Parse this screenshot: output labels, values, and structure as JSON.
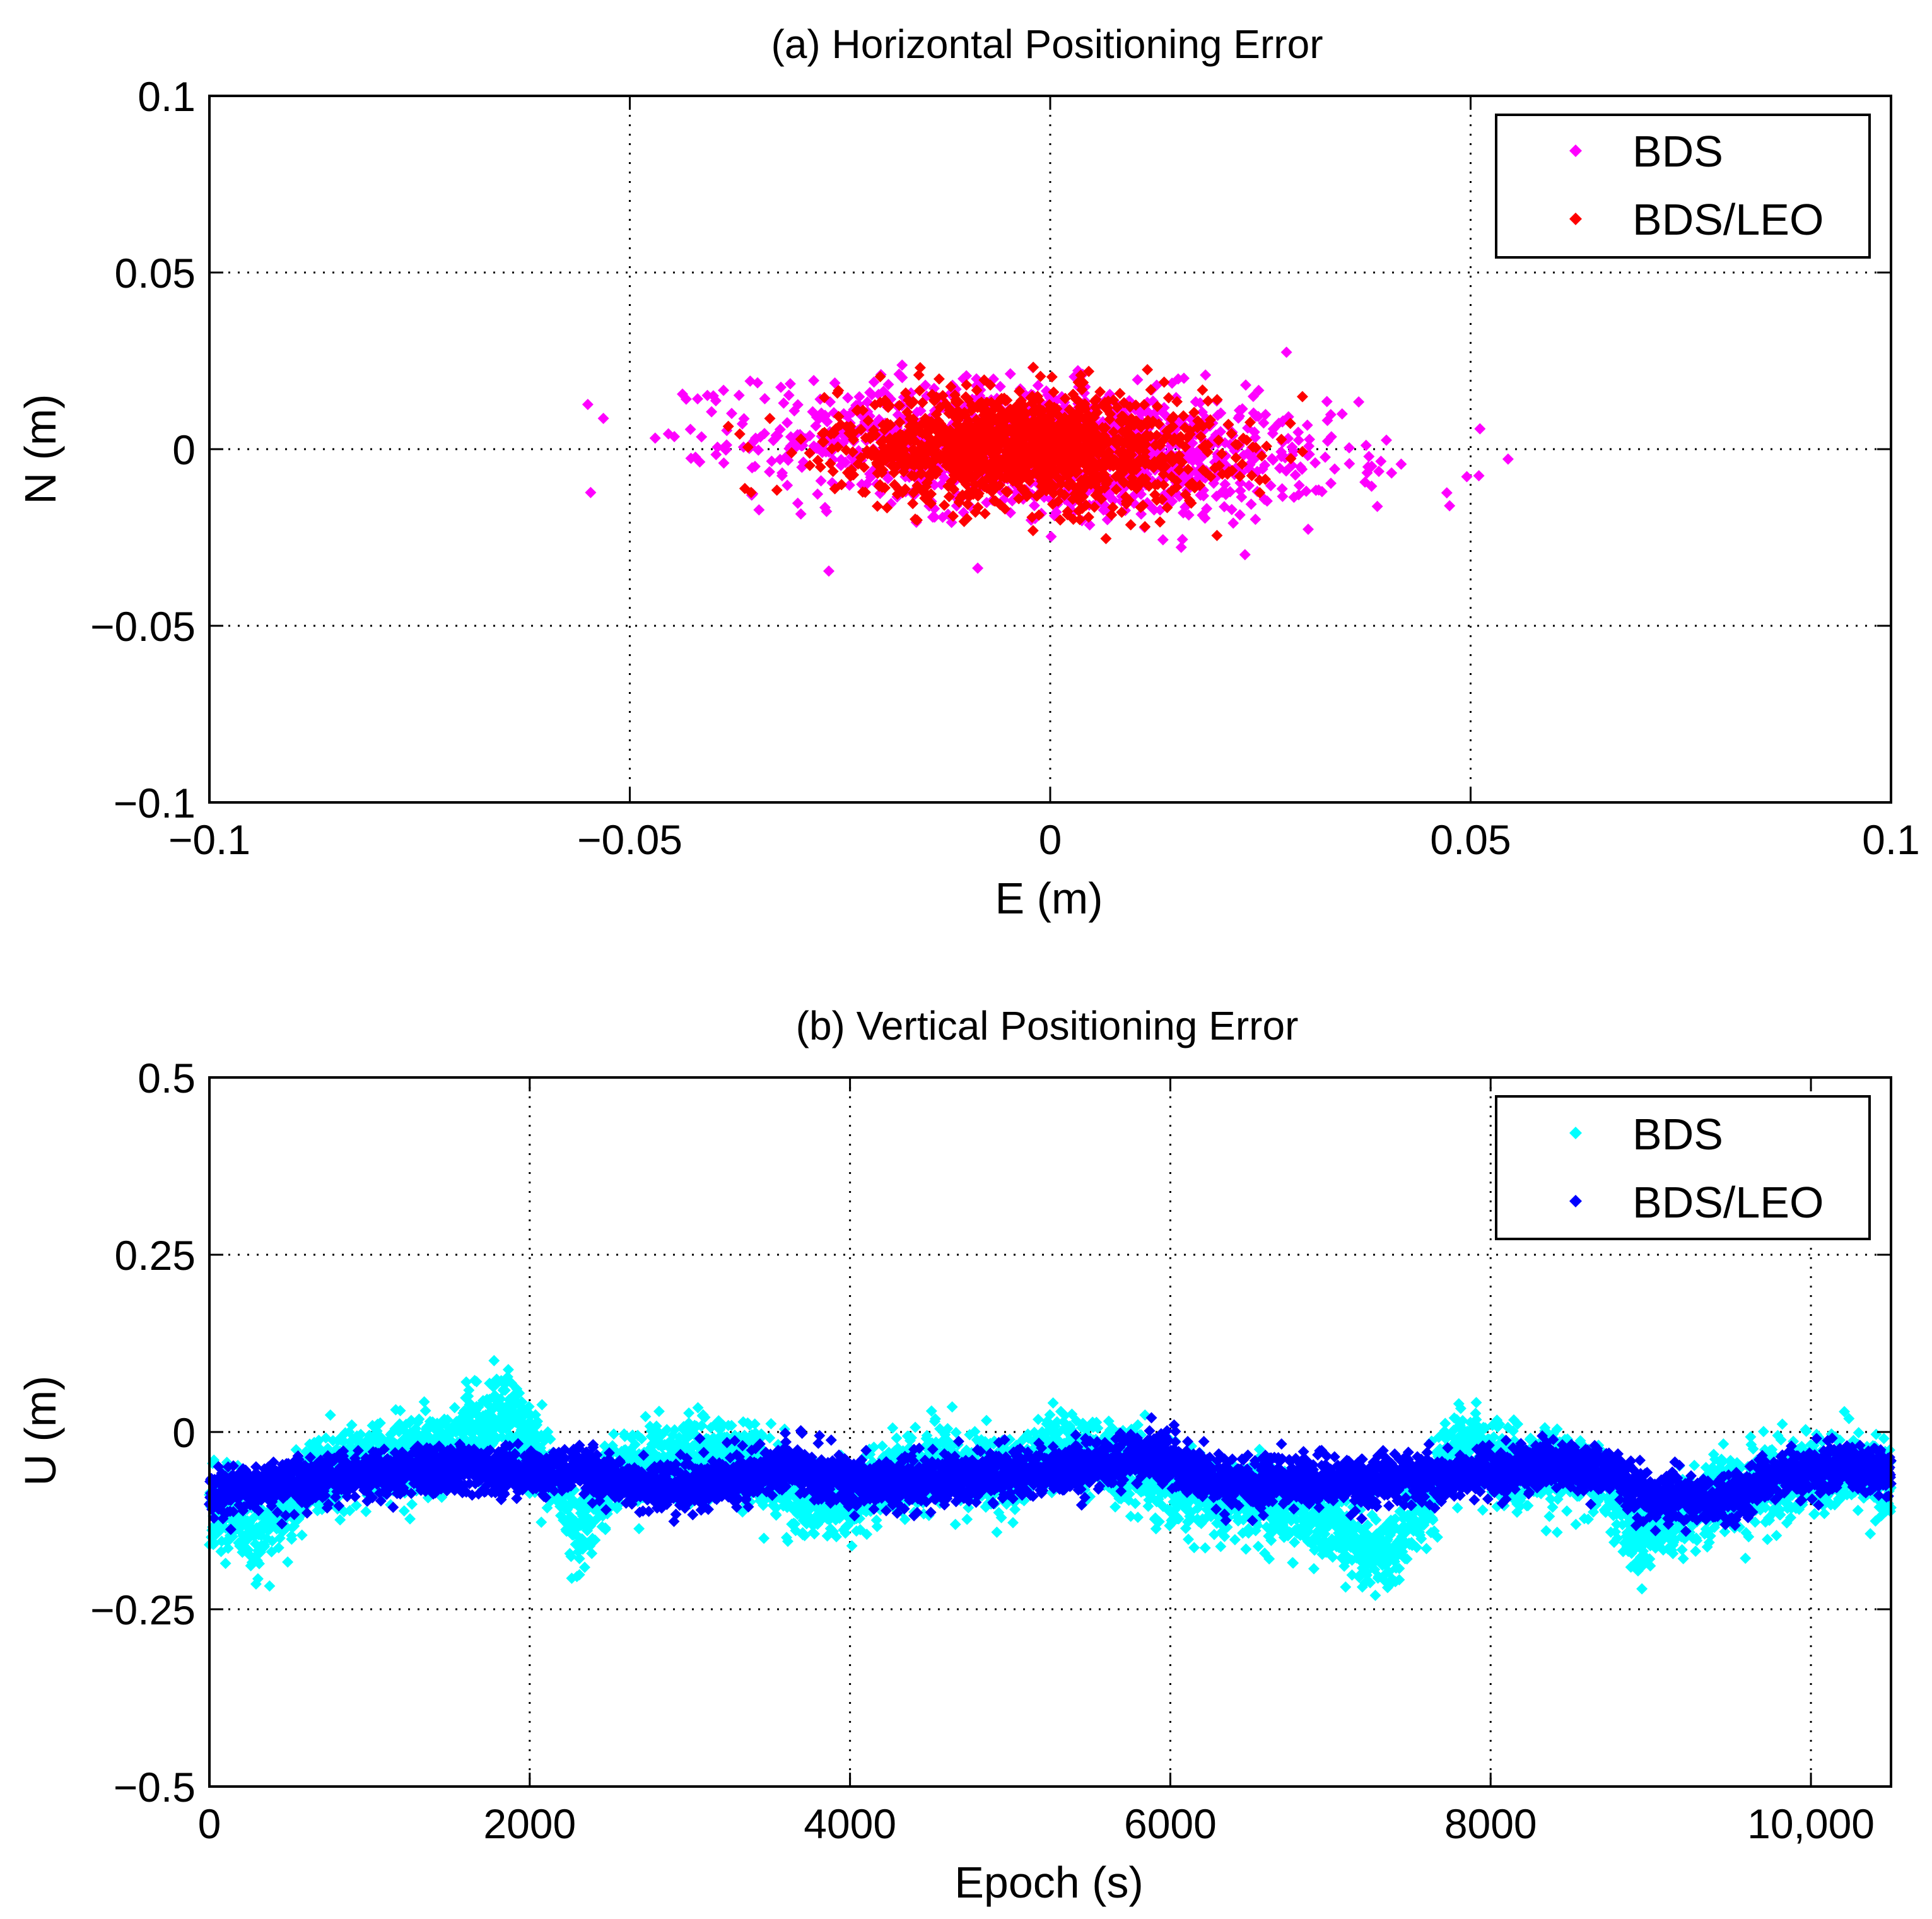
{
  "chart_data": [
    {
      "id": "a",
      "type": "scatter",
      "title": "(a) Horizontal Positioning Error",
      "xlabel": "E (m)",
      "ylabel": "N (m)",
      "xlim": [
        -0.1,
        0.1
      ],
      "ylim": [
        -0.1,
        0.1
      ],
      "xticks": [
        -0.1,
        -0.05,
        0,
        0.05,
        0.1
      ],
      "xtick_labels": [
        "−0.1",
        "−0.05",
        "0",
        "0.05",
        "0.1"
      ],
      "yticks": [
        -0.1,
        -0.05,
        0,
        0.05,
        0.1
      ],
      "ytick_labels": [
        "−0.1",
        "−0.05",
        "0",
        "0.05",
        "0.1"
      ],
      "grid": true,
      "legend_position": "top-right",
      "series": [
        {
          "name": "BDS",
          "color": "#ff00ff",
          "points": 1400,
          "e_mean": 0.0,
          "e_std": 0.017,
          "e_range": [
            -0.055,
            0.055
          ],
          "n_mean": 0.0,
          "n_std": 0.009,
          "n_range": [
            -0.038,
            0.031
          ],
          "tilt": -0.35
        },
        {
          "name": "BDS/LEO",
          "color": "#ff0000",
          "points": 1400,
          "e_mean": -0.003,
          "e_std": 0.011,
          "e_range": [
            -0.047,
            0.03
          ],
          "n_mean": 0.0,
          "n_std": 0.008,
          "n_range": [
            -0.032,
            0.027
          ],
          "tilt": -0.2
        }
      ]
    },
    {
      "id": "b",
      "type": "scatter",
      "title": "(b) Vertical Positioning Error",
      "xlabel": "Epoch (s)",
      "ylabel": "U (m)",
      "xlim": [
        0,
        10500
      ],
      "ylim": [
        -0.5,
        0.5
      ],
      "xticks": [
        0,
        2000,
        4000,
        6000,
        8000,
        10000
      ],
      "xtick_labels": [
        "0",
        "2000",
        "4000",
        "6000",
        "8000",
        "10,000"
      ],
      "yticks": [
        -0.5,
        -0.25,
        0,
        0.25,
        0.5
      ],
      "ytick_labels": [
        "−0.5",
        "−0.25",
        "0",
        "0.25",
        "0.5"
      ],
      "grid": true,
      "legend_position": "top-right",
      "series": [
        {
          "name": "BDS",
          "color": "#00ffff",
          "trend": [
            [
              0,
              -0.1
            ],
            [
              300,
              -0.14
            ],
            [
              700,
              -0.06
            ],
            [
              1000,
              -0.04
            ],
            [
              1500,
              -0.02
            ],
            [
              1850,
              0.03
            ],
            [
              2100,
              -0.04
            ],
            [
              2300,
              -0.14
            ],
            [
              2500,
              -0.06
            ],
            [
              3000,
              -0.03
            ],
            [
              3400,
              -0.04
            ],
            [
              3700,
              -0.1
            ],
            [
              4000,
              -0.09
            ],
            [
              4500,
              -0.05
            ],
            [
              5000,
              -0.06
            ],
            [
              5300,
              -0.02
            ],
            [
              5700,
              -0.04
            ],
            [
              6000,
              -0.08
            ],
            [
              6500,
              -0.09
            ],
            [
              7000,
              -0.13
            ],
            [
              7300,
              -0.18
            ],
            [
              7600,
              -0.1
            ],
            [
              7800,
              -0.02
            ],
            [
              8200,
              -0.05
            ],
            [
              8700,
              -0.06
            ],
            [
              8900,
              -0.15
            ],
            [
              9300,
              -0.1
            ],
            [
              9800,
              -0.07
            ],
            [
              10200,
              -0.05
            ],
            [
              10500,
              -0.07
            ]
          ],
          "spread": 0.045,
          "extremes": {
            "min": -0.25,
            "max": 0.13
          }
        },
        {
          "name": "BDS/LEO",
          "color": "#0000ff",
          "trend": [
            [
              0,
              -0.09
            ],
            [
              500,
              -0.07
            ],
            [
              1000,
              -0.06
            ],
            [
              1500,
              -0.05
            ],
            [
              1900,
              -0.06
            ],
            [
              2300,
              -0.05
            ],
            [
              2700,
              -0.08
            ],
            [
              3200,
              -0.07
            ],
            [
              3600,
              -0.05
            ],
            [
              4000,
              -0.07
            ],
            [
              4500,
              -0.07
            ],
            [
              5000,
              -0.06
            ],
            [
              5500,
              -0.05
            ],
            [
              5900,
              -0.03
            ],
            [
              6300,
              -0.07
            ],
            [
              6800,
              -0.07
            ],
            [
              7200,
              -0.07
            ],
            [
              7800,
              -0.06
            ],
            [
              8200,
              -0.05
            ],
            [
              8700,
              -0.05
            ],
            [
              9000,
              -0.09
            ],
            [
              9400,
              -0.1
            ],
            [
              9800,
              -0.06
            ],
            [
              10200,
              -0.05
            ],
            [
              10500,
              -0.06
            ]
          ],
          "spread": 0.028,
          "extremes": {
            "min": -0.14,
            "max": 0.02
          }
        }
      ]
    }
  ]
}
